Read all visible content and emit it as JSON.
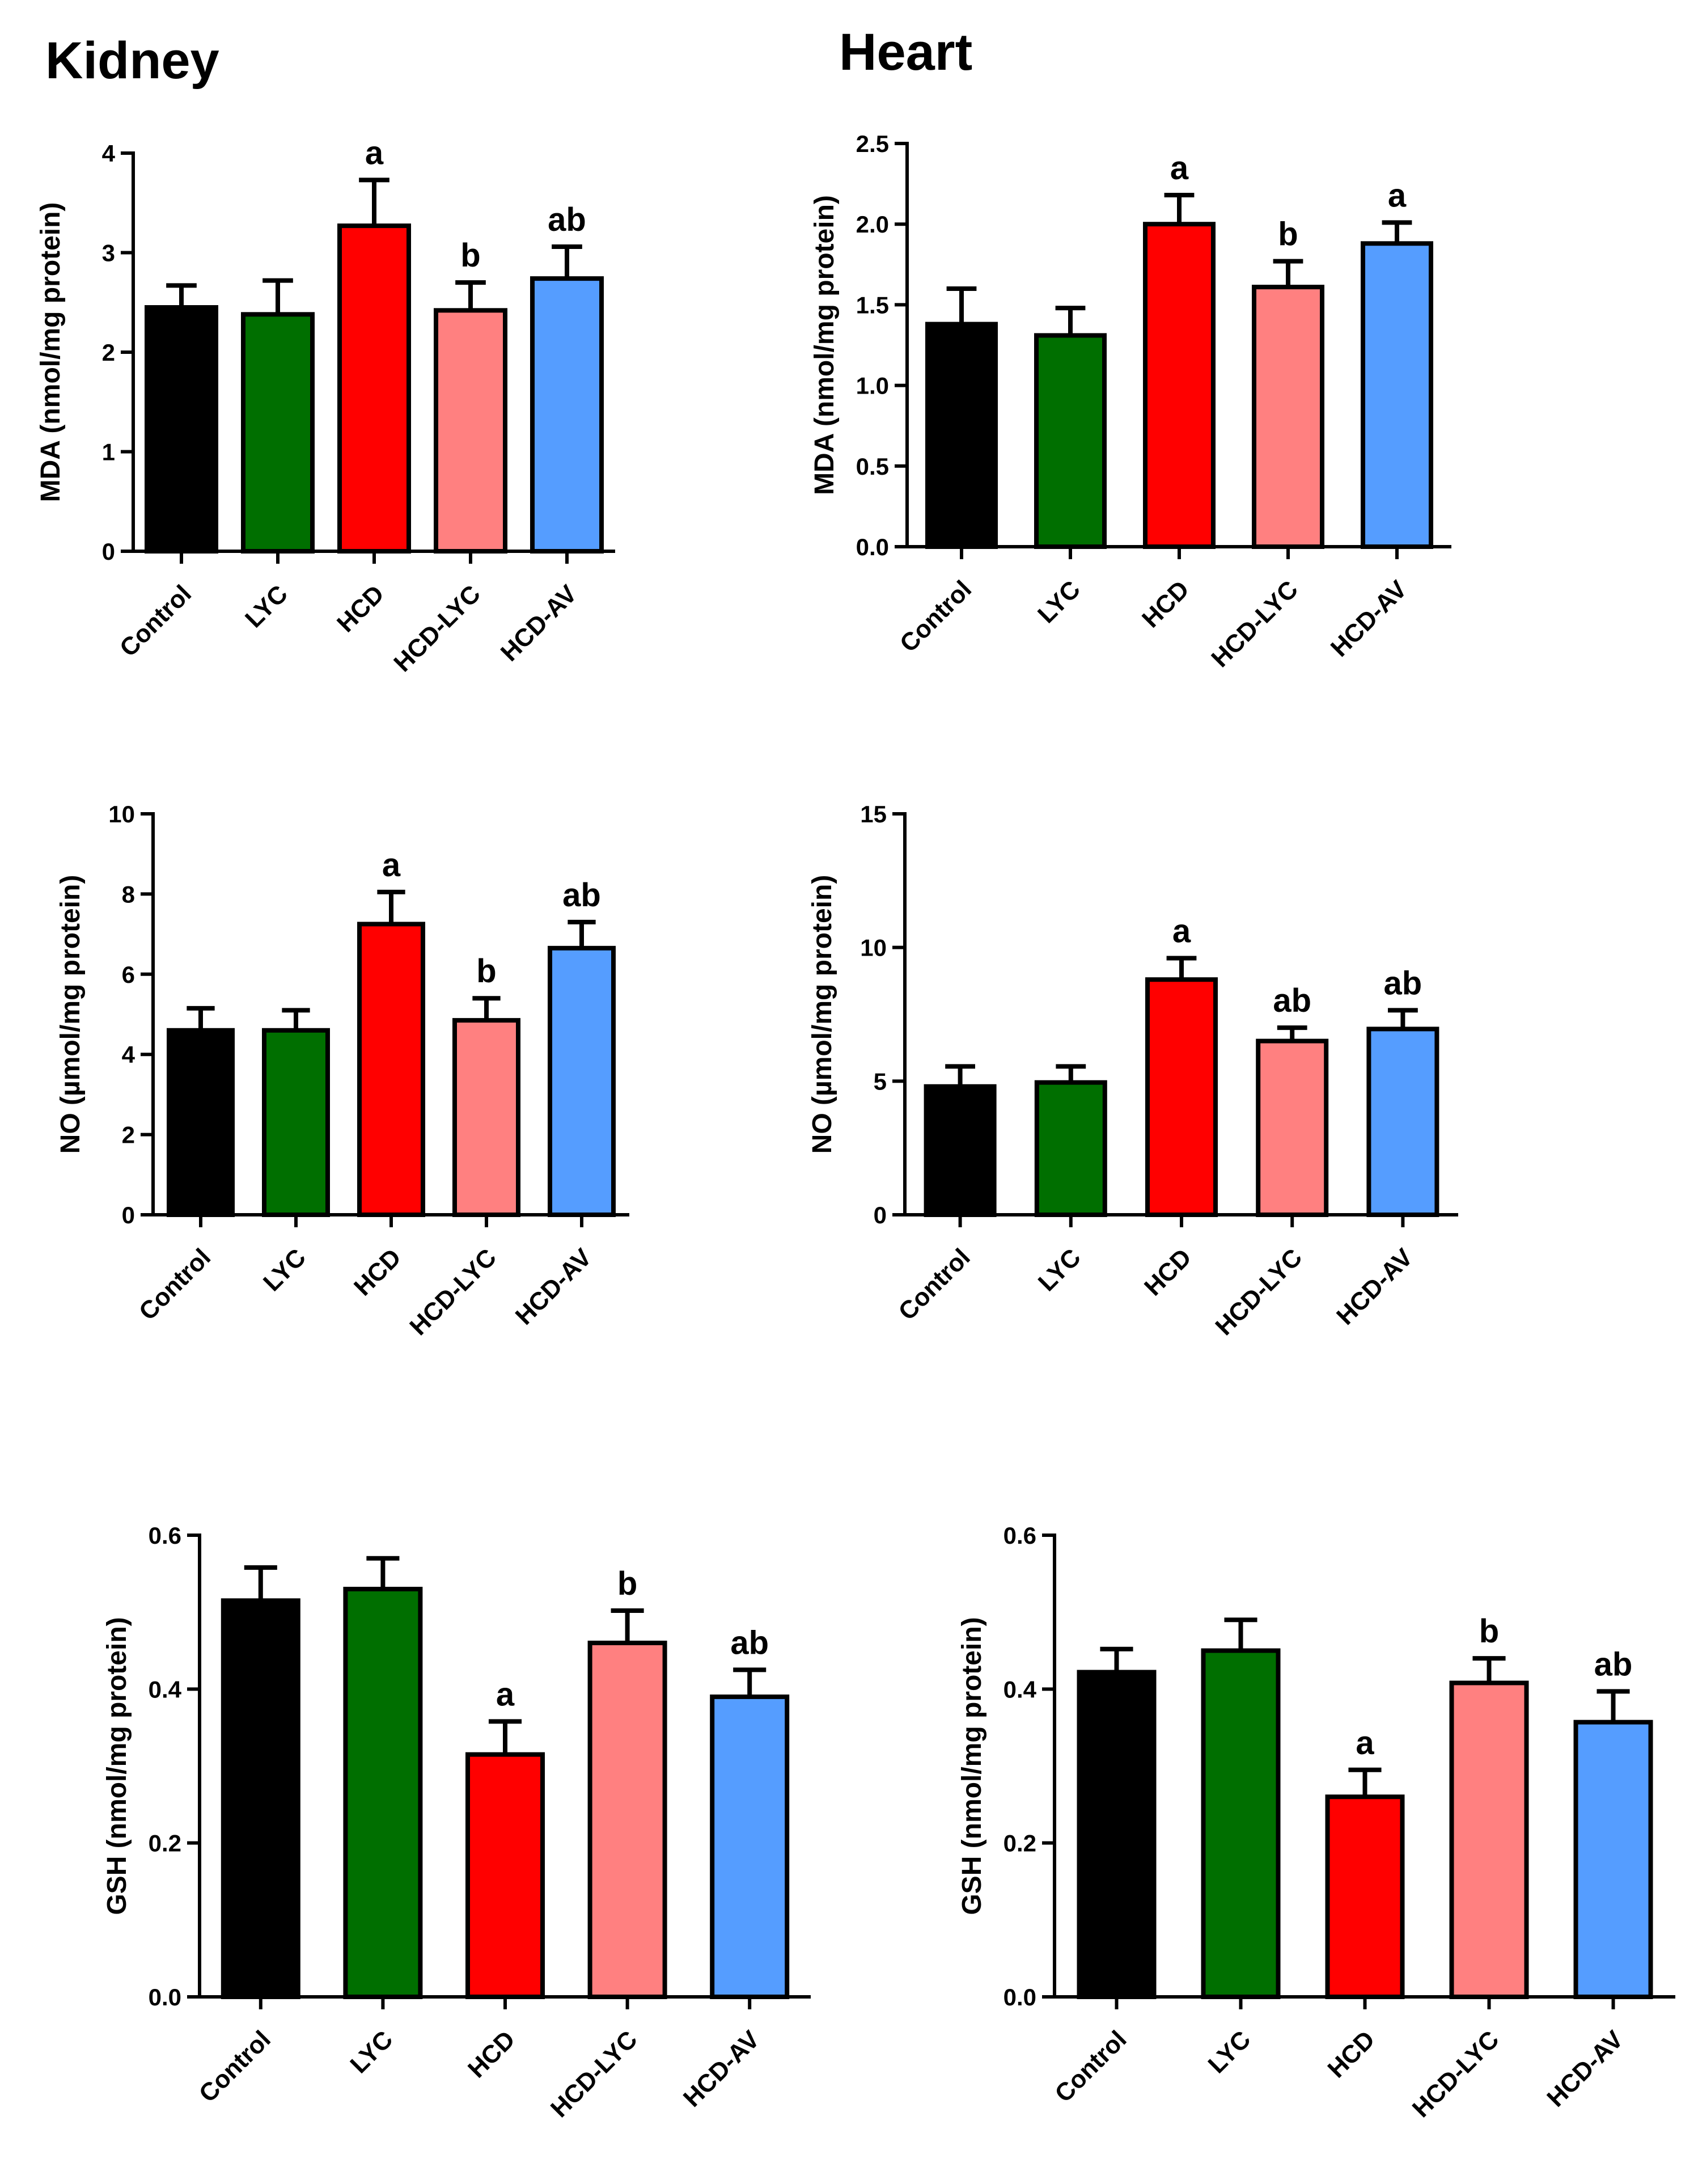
{
  "figure": {
    "kidney_title": "Kidney",
    "heart_title": "Heart"
  },
  "colors": {
    "control": "#000000",
    "lyc": "#006f00",
    "hcd": "#ff0000",
    "hcd_lyc": "#ff8080",
    "hcd_av": "#559dff"
  },
  "chart_data": [
    {
      "id": "kidney-mda",
      "type": "bar",
      "title": "",
      "xlabel": "",
      "ylabel": "MDA (nmol/mg protein)",
      "ylim": [
        0,
        4
      ],
      "yticks": [
        "0",
        "1",
        "2",
        "3",
        "4"
      ],
      "categories": [
        "Control",
        "LYC",
        "HCD",
        "HCD-LYC",
        "HCD-AV"
      ],
      "values": [
        2.45,
        2.38,
        3.27,
        2.42,
        2.74
      ],
      "errors": [
        0.22,
        0.34,
        0.46,
        0.28,
        0.32
      ],
      "annotations": [
        "",
        "",
        "a",
        "b",
        "ab"
      ]
    },
    {
      "id": "heart-mda",
      "type": "bar",
      "title": "",
      "xlabel": "",
      "ylabel": "MDA (nmol/mg protein)",
      "ylim": [
        0,
        2.5
      ],
      "yticks": [
        "0.0",
        "0.5",
        "1.0",
        "1.5",
        "2.0",
        "2.5"
      ],
      "categories": [
        "Control",
        "LYC",
        "HCD",
        "HCD-LYC",
        "HCD-AV"
      ],
      "values": [
        1.38,
        1.31,
        2.0,
        1.61,
        1.88
      ],
      "errors": [
        0.22,
        0.17,
        0.18,
        0.16,
        0.13
      ],
      "annotations": [
        "",
        "",
        "a",
        "b",
        "a"
      ]
    },
    {
      "id": "kidney-no",
      "type": "bar",
      "title": "",
      "xlabel": "",
      "ylabel": "NO (µmol/mg protein)",
      "ylim": [
        0,
        10
      ],
      "yticks": [
        "0",
        "2",
        "4",
        "6",
        "8",
        "10"
      ],
      "categories": [
        "Control",
        "LYC",
        "HCD",
        "HCD-LYC",
        "HCD-AV"
      ],
      "values": [
        4.6,
        4.6,
        7.25,
        4.85,
        6.65
      ],
      "errors": [
        0.55,
        0.5,
        0.8,
        0.55,
        0.65
      ],
      "annotations": [
        "",
        "",
        "a",
        "b",
        "ab"
      ]
    },
    {
      "id": "heart-no",
      "type": "bar",
      "title": "",
      "xlabel": "",
      "ylabel": "NO (µmol/mg protein)",
      "ylim": [
        0,
        15
      ],
      "yticks": [
        "0",
        "5",
        "10",
        "15"
      ],
      "categories": [
        "Control",
        "LYC",
        "HCD",
        "HCD-LYC",
        "HCD-AV"
      ],
      "values": [
        4.8,
        4.95,
        8.8,
        6.5,
        6.95
      ],
      "errors": [
        0.75,
        0.6,
        0.8,
        0.5,
        0.7
      ],
      "annotations": [
        "",
        "",
        "a",
        "ab",
        "ab"
      ]
    },
    {
      "id": "kidney-gsh",
      "type": "bar",
      "title": "",
      "xlabel": "",
      "ylabel": "GSH (nmol/mg protein)",
      "ylim": [
        0,
        0.6
      ],
      "yticks": [
        "0.0",
        "0.2",
        "0.4",
        "0.6"
      ],
      "categories": [
        "Control",
        "LYC",
        "HCD",
        "HCD-LYC",
        "HCD-AV"
      ],
      "values": [
        0.515,
        0.53,
        0.315,
        0.46,
        0.39
      ],
      "errors": [
        0.043,
        0.04,
        0.043,
        0.042,
        0.035
      ],
      "annotations": [
        "",
        "",
        "a",
        "b",
        "ab"
      ]
    },
    {
      "id": "heart-gsh",
      "type": "bar",
      "title": "",
      "xlabel": "",
      "ylabel": "GSH (nmol/mg protein)",
      "ylim": [
        0,
        0.6
      ],
      "yticks": [
        "0.0",
        "0.2",
        "0.4",
        "0.6"
      ],
      "categories": [
        "Control",
        "LYC",
        "HCD",
        "HCD-LYC",
        "HCD-AV"
      ],
      "values": [
        0.422,
        0.45,
        0.26,
        0.408,
        0.357
      ],
      "errors": [
        0.03,
        0.04,
        0.035,
        0.032,
        0.04
      ],
      "annotations": [
        "",
        "",
        "a",
        "b",
        "ab"
      ]
    }
  ]
}
